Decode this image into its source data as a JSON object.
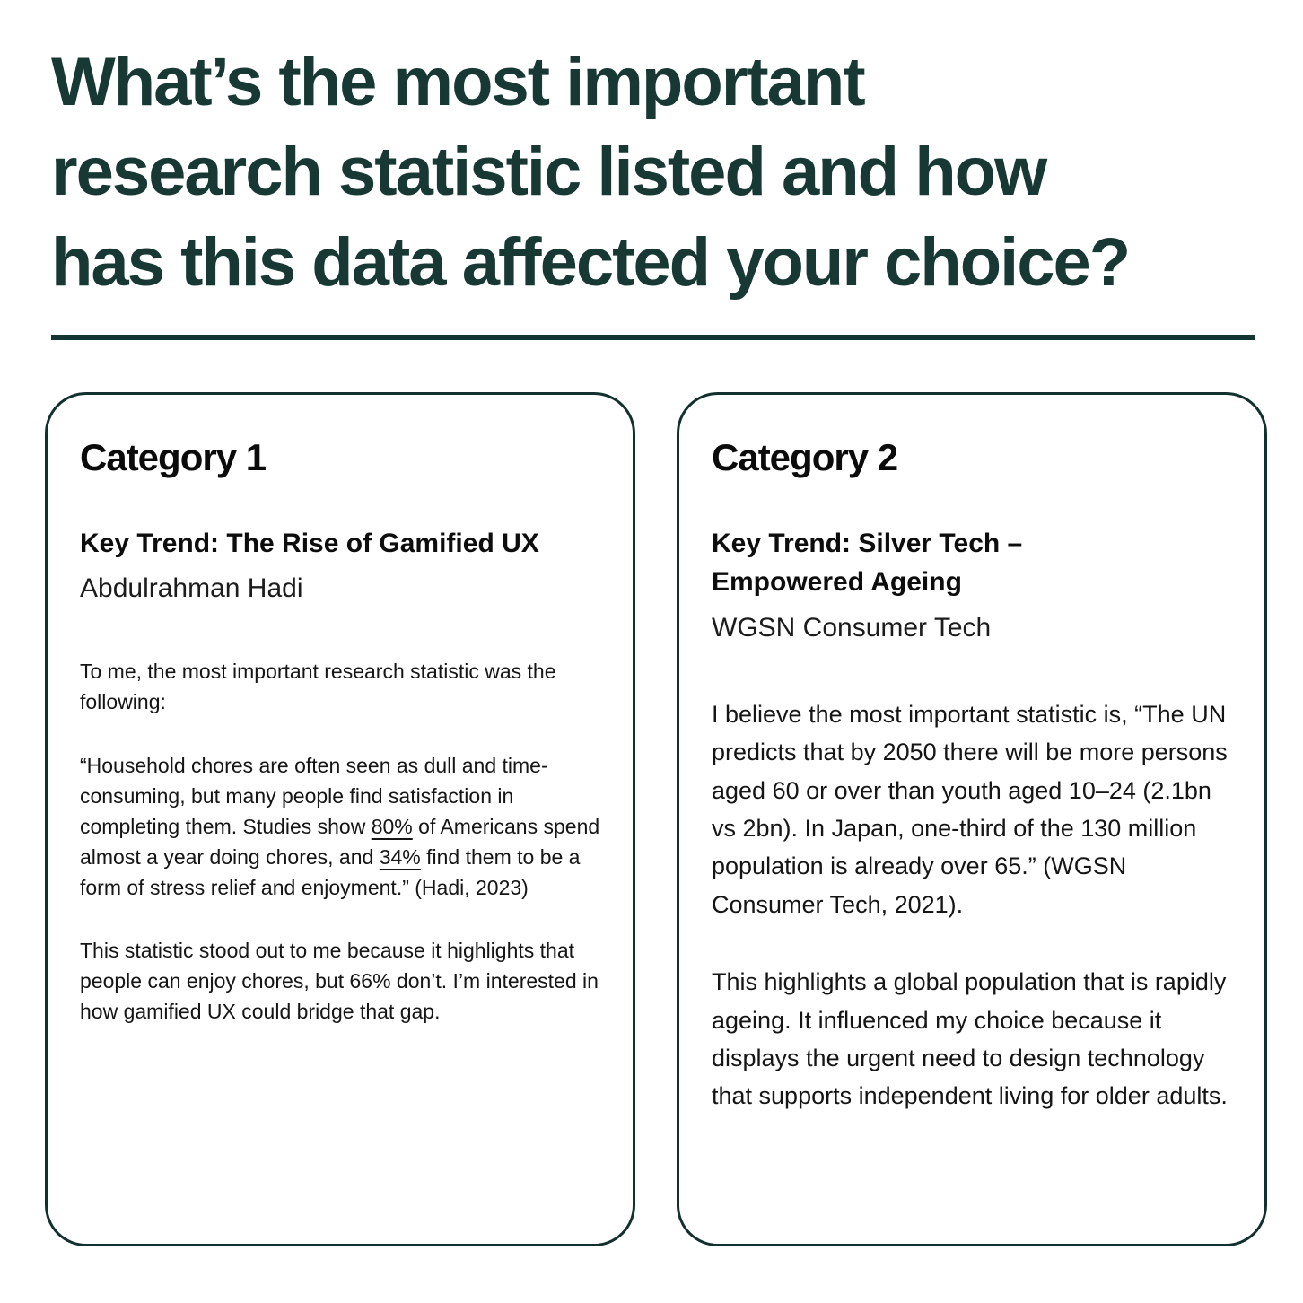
{
  "header": {
    "title_lines": [
      "What’s the most important",
      "research statistic listed and how",
      "has this data affected your choice?"
    ]
  },
  "colors": {
    "title_accent": "#173833",
    "divider": "#143531",
    "card_border": "#12302d",
    "body_text": "#151515"
  },
  "cards": [
    {
      "category_label": "Category 1",
      "trend_title_lines": [
        "Key Trend: The Rise of Gamified UX"
      ],
      "source": "Abdulrahman Hadi",
      "paragraphs": [
        [
          {
            "t": "To me, the most important research statistic was the following:"
          }
        ],
        [
          {
            "t": "“Household chores are often seen as dull and time-consuming, but many people find satisfaction in completing them. Studies show "
          },
          {
            "t": "80%",
            "u": true
          },
          {
            "t": " of Americans spend almost a year doing chores, and "
          },
          {
            "t": "34%",
            "u": true
          },
          {
            "t": " find them to be a form of stress relief and enjoyment.” (Hadi, 2023)"
          }
        ],
        [
          {
            "t": "This statistic stood out to me because it highlights that people can enjoy chores, but 66% don’t. I’m interested in how gamified UX could bridge that gap."
          }
        ]
      ]
    },
    {
      "category_label": "Category 2",
      "trend_title_lines": [
        "Key Trend: Silver Tech –",
        "Empowered Ageing"
      ],
      "source": "WGSN Consumer Tech",
      "paragraphs": [
        [
          {
            "t": "I believe the most important statistic is, “The UN predicts that by 2050 there will be more persons aged 60 or over than youth aged 10–24 (2.1bn vs 2bn). In Japan, one-third of the 130 million population is already over 65.” (WGSN Consumer Tech, 2021)."
          }
        ],
        [
          {
            "t": "This highlights a global population that is rapidly ageing. It influenced my choice because it displays the urgent need to design technology that supports independent living for older adults."
          }
        ]
      ]
    }
  ]
}
